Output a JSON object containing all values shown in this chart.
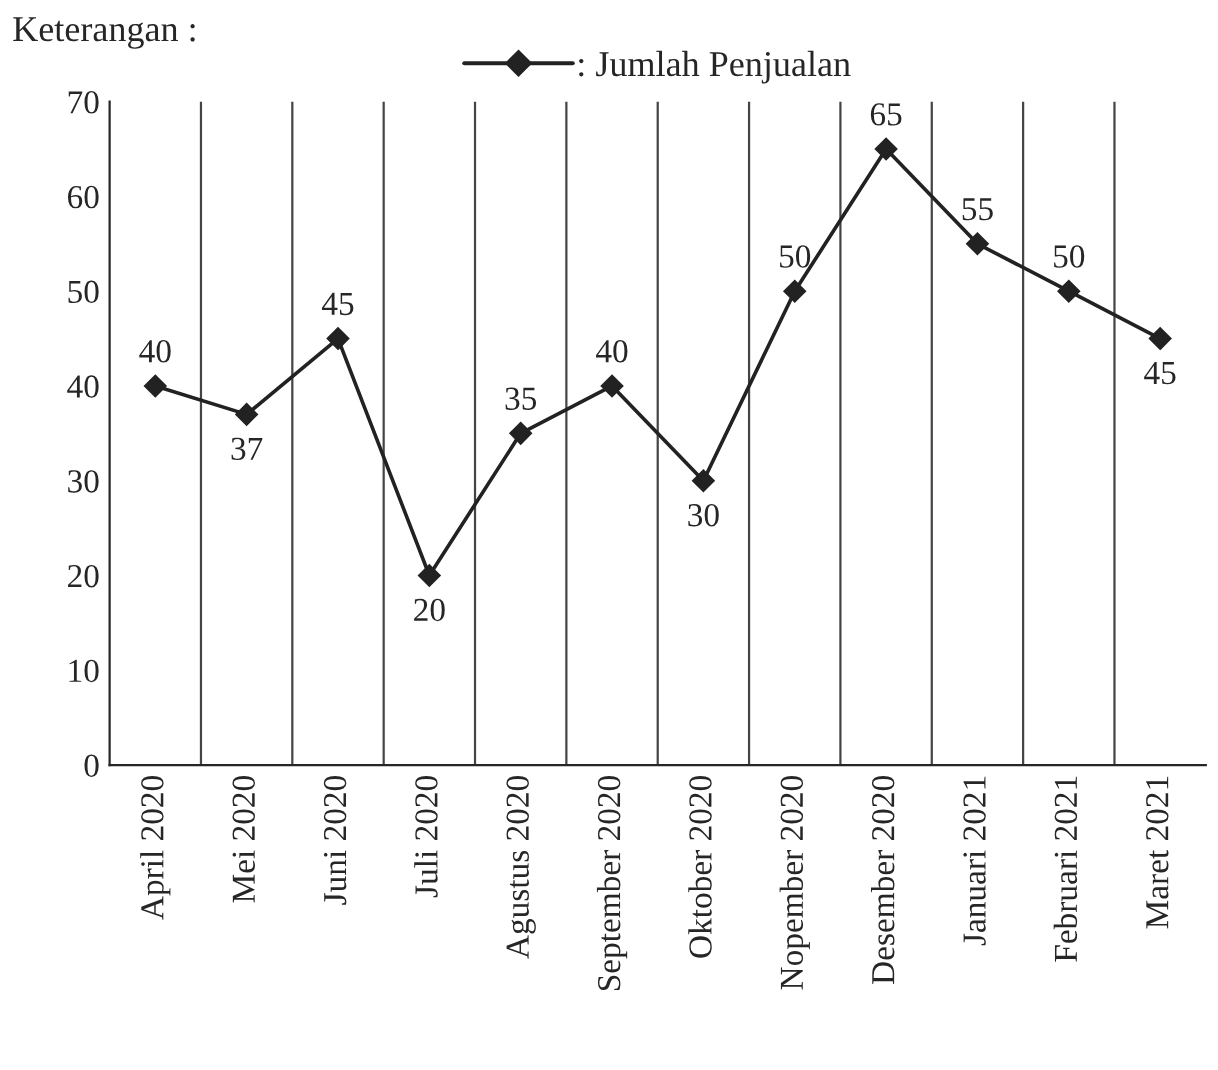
{
  "chart_data": {
    "type": "line",
    "categories": [
      "April 2020",
      "Mei 2020",
      "Juni 2020",
      "Juli 2020",
      "Agustus 2020",
      "September 2020",
      "Oktober 2020",
      "Nopember 2020",
      "Desember 2020",
      "Januari 2021",
      "Februari 2021",
      "Maret 2021"
    ],
    "series": [
      {
        "name": ": Jumlah Penjualan",
        "color": "#222222",
        "values": [
          40,
          37,
          45,
          20,
          35,
          40,
          30,
          50,
          65,
          55,
          50,
          45
        ]
      }
    ],
    "ylim": [
      0,
      70
    ],
    "yticks": [
      0,
      10,
      20,
      30,
      40,
      50,
      60,
      70
    ],
    "grid": "x",
    "legend": "top",
    "marker": "diamond",
    "line_style": "solid",
    "data_labels": true,
    "annotations": [
      "Keterangan :"
    ]
  }
}
